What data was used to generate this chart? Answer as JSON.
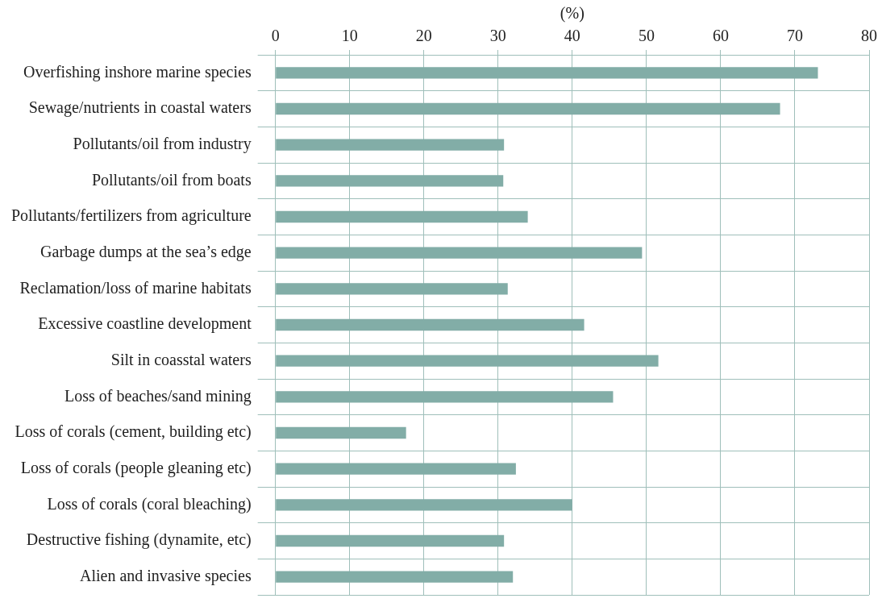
{
  "chart_data": {
    "type": "bar",
    "orientation": "horizontal",
    "xlabel": "(%)",
    "categories": [
      "Overfishing inshore marine species",
      "Sewage/nutrients in coastal waters",
      "Pollutants/oil from industry",
      "Pollutants/oil from boats",
      "Pollutants/fertilizers from agriculture",
      "Garbage dumps at the sea’s edge",
      "Reclamation/loss of marine habitats",
      "Excessive coastline development",
      "Silt in coasstal waters",
      "Loss of beaches/sand mining",
      "Loss of corals (cement, building etc)",
      "Loss of corals (people gleaning etc)",
      "Loss of corals (coral bleaching)",
      "Destructive fishing (dynamite, etc)",
      "Alien and invasive species"
    ],
    "values": [
      73.1,
      68.0,
      30.8,
      30.7,
      34.0,
      49.4,
      31.3,
      41.6,
      51.6,
      45.5,
      17.6,
      32.4,
      40.0,
      30.8,
      32.0
    ],
    "color": "#82ada7",
    "xlim": [
      0,
      80
    ],
    "xticks": [
      0,
      10,
      20,
      30,
      40,
      50,
      60,
      70,
      80
    ],
    "grid": true,
    "legend": false
  }
}
